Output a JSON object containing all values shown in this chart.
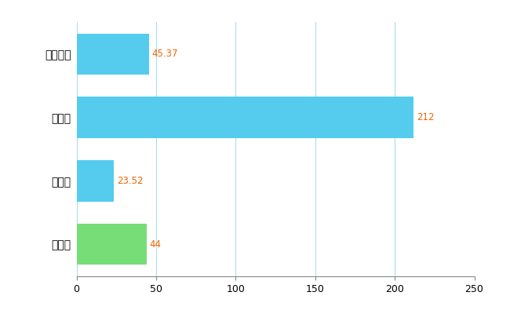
{
  "categories": [
    "大付市",
    "県平均",
    "県最大",
    "全国平均"
  ],
  "values": [
    44,
    23.52,
    212,
    45.37
  ],
  "bar_colors": [
    "#77dd77",
    "#55ccee",
    "#55ccee",
    "#55ccee"
  ],
  "value_labels": [
    "44",
    "23.52",
    "212",
    "45.37"
  ],
  "label_color": "#ee6600",
  "xlim": [
    0,
    250
  ],
  "xticks": [
    0,
    50,
    100,
    150,
    200,
    250
  ],
  "grid_color": "#aaddee",
  "bar_height": 0.65,
  "background_color": "#ffffff"
}
